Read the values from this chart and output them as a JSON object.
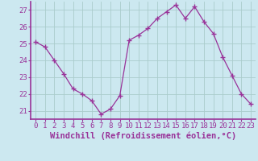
{
  "x": [
    0,
    1,
    2,
    3,
    4,
    5,
    6,
    7,
    8,
    9,
    10,
    11,
    12,
    13,
    14,
    15,
    16,
    17,
    18,
    19,
    20,
    21,
    22,
    23
  ],
  "y": [
    25.1,
    24.8,
    24.0,
    23.2,
    22.3,
    22.0,
    21.6,
    20.8,
    21.1,
    21.9,
    25.2,
    25.5,
    25.9,
    26.5,
    26.9,
    27.3,
    26.5,
    27.2,
    26.3,
    25.6,
    24.2,
    23.1,
    22.0,
    21.4
  ],
  "line_color": "#993399",
  "marker": "+",
  "bg_color": "#cce8f0",
  "grid_color": "#aacccc",
  "axis_color": "#993399",
  "tick_color": "#993399",
  "xlabel": "Windchill (Refroidissement éolien,°C)",
  "ylabel_ticks": [
    21,
    22,
    23,
    24,
    25,
    26,
    27
  ],
  "xlim": [
    -0.5,
    23.5
  ],
  "ylim": [
    20.5,
    27.5
  ],
  "tick_fontsize": 6.5,
  "label_fontsize": 7.5
}
